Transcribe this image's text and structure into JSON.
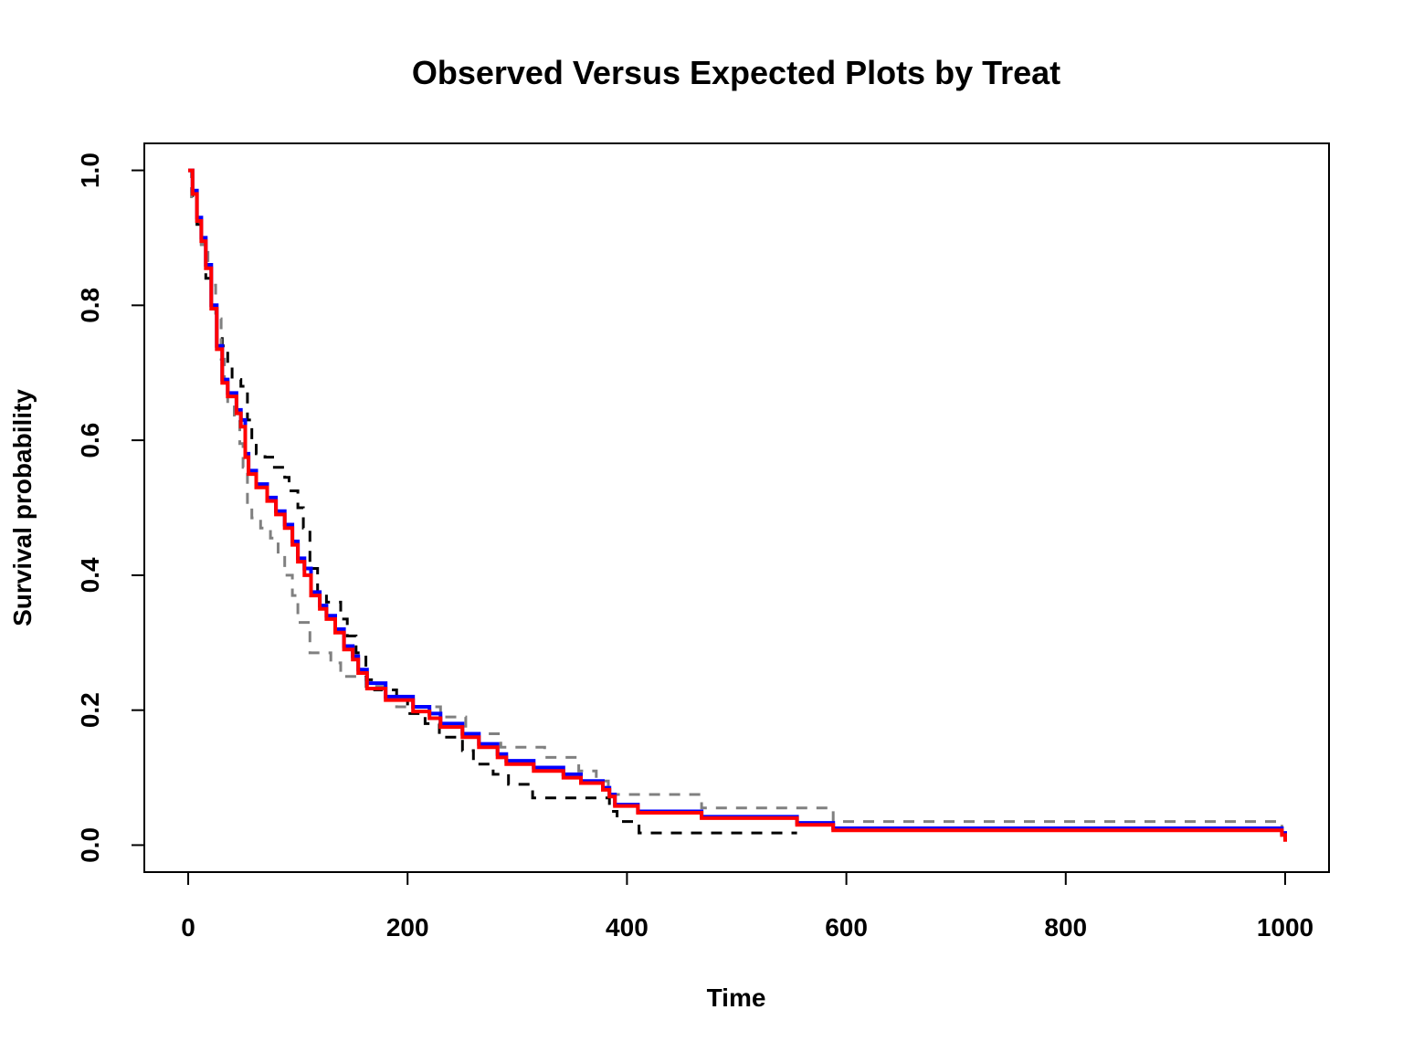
{
  "chart_data": {
    "type": "line",
    "step": true,
    "title": "Observed Versus Expected Plots by Treat",
    "xlabel": "Time",
    "ylabel": "Survival probability",
    "xlim": [
      -40,
      1040
    ],
    "ylim": [
      -0.04,
      1.04
    ],
    "x_ticks": [
      0,
      200,
      400,
      600,
      800,
      1000
    ],
    "x_tick_labels": [
      "0",
      "200",
      "400",
      "600",
      "800",
      "1000"
    ],
    "y_ticks": [
      0.0,
      0.2,
      0.4,
      0.6,
      0.8,
      1.0
    ],
    "y_tick_labels": [
      "0.0",
      "0.2",
      "0.4",
      "0.6",
      "0.8",
      "1.0"
    ],
    "grid": false,
    "legend": "none",
    "series": [
      {
        "color": "#000000",
        "dash": "dashed",
        "width": 3,
        "points": [
          [
            0,
            1.0
          ],
          [
            4,
            0.96
          ],
          [
            8,
            0.92
          ],
          [
            12,
            0.89
          ],
          [
            16,
            0.84
          ],
          [
            21,
            0.8
          ],
          [
            26,
            0.76
          ],
          [
            31,
            0.74
          ],
          [
            36,
            0.71
          ],
          [
            40,
            0.69
          ],
          [
            48,
            0.68
          ],
          [
            54,
            0.63
          ],
          [
            58,
            0.6
          ],
          [
            62,
            0.58
          ],
          [
            70,
            0.575
          ],
          [
            77,
            0.56
          ],
          [
            88,
            0.545
          ],
          [
            92,
            0.525
          ],
          [
            100,
            0.5
          ],
          [
            105,
            0.47
          ],
          [
            111,
            0.41
          ],
          [
            118,
            0.375
          ],
          [
            126,
            0.36
          ],
          [
            139,
            0.335
          ],
          [
            145,
            0.31
          ],
          [
            153,
            0.285
          ],
          [
            162,
            0.245
          ],
          [
            170,
            0.23
          ],
          [
            190,
            0.215
          ],
          [
            200,
            0.195
          ],
          [
            216,
            0.18
          ],
          [
            229,
            0.16
          ],
          [
            250,
            0.14
          ],
          [
            260,
            0.12
          ],
          [
            278,
            0.105
          ],
          [
            292,
            0.09
          ],
          [
            314,
            0.07
          ],
          [
            384,
            0.05
          ],
          [
            391,
            0.035
          ],
          [
            411,
            0.018
          ],
          [
            555,
            0.018
          ]
        ]
      },
      {
        "color": "#808080",
        "dash": "dashed",
        "width": 3,
        "points": [
          [
            0,
            1.0
          ],
          [
            3,
            0.955
          ],
          [
            8,
            0.93
          ],
          [
            12,
            0.89
          ],
          [
            18,
            0.86
          ],
          [
            21,
            0.83
          ],
          [
            25,
            0.78
          ],
          [
            30,
            0.72
          ],
          [
            33,
            0.69
          ],
          [
            36,
            0.655
          ],
          [
            42,
            0.635
          ],
          [
            47,
            0.595
          ],
          [
            50,
            0.56
          ],
          [
            54,
            0.5
          ],
          [
            58,
            0.485
          ],
          [
            66,
            0.47
          ],
          [
            75,
            0.455
          ],
          [
            82,
            0.43
          ],
          [
            88,
            0.4
          ],
          [
            95,
            0.37
          ],
          [
            100,
            0.33
          ],
          [
            111,
            0.285
          ],
          [
            130,
            0.27
          ],
          [
            139,
            0.25
          ],
          [
            162,
            0.235
          ],
          [
            178,
            0.22
          ],
          [
            190,
            0.205
          ],
          [
            230,
            0.19
          ],
          [
            253,
            0.165
          ],
          [
            285,
            0.145
          ],
          [
            325,
            0.13
          ],
          [
            356,
            0.11
          ],
          [
            372,
            0.095
          ],
          [
            383,
            0.075
          ],
          [
            468,
            0.055
          ],
          [
            588,
            0.035
          ],
          [
            992,
            0.035
          ],
          [
            997,
            0.015
          ],
          [
            1000,
            0.01
          ]
        ]
      },
      {
        "color": "#0000ff",
        "dash": "solid",
        "width": 4,
        "points": [
          [
            0,
            1.0
          ],
          [
            4,
            0.97
          ],
          [
            8,
            0.93
          ],
          [
            12,
            0.9
          ],
          [
            16,
            0.86
          ],
          [
            21,
            0.8
          ],
          [
            26,
            0.74
          ],
          [
            31,
            0.69
          ],
          [
            36,
            0.67
          ],
          [
            44,
            0.645
          ],
          [
            48,
            0.63
          ],
          [
            52,
            0.58
          ],
          [
            55,
            0.555
          ],
          [
            62,
            0.535
          ],
          [
            72,
            0.515
          ],
          [
            80,
            0.495
          ],
          [
            88,
            0.475
          ],
          [
            95,
            0.45
          ],
          [
            100,
            0.425
          ],
          [
            106,
            0.41
          ],
          [
            112,
            0.375
          ],
          [
            120,
            0.355
          ],
          [
            126,
            0.34
          ],
          [
            134,
            0.32
          ],
          [
            142,
            0.295
          ],
          [
            150,
            0.28
          ],
          [
            155,
            0.26
          ],
          [
            163,
            0.24
          ],
          [
            180,
            0.22
          ],
          [
            205,
            0.205
          ],
          [
            220,
            0.195
          ],
          [
            230,
            0.18
          ],
          [
            250,
            0.165
          ],
          [
            265,
            0.15
          ],
          [
            282,
            0.135
          ],
          [
            290,
            0.125
          ],
          [
            315,
            0.115
          ],
          [
            342,
            0.105
          ],
          [
            358,
            0.095
          ],
          [
            378,
            0.085
          ],
          [
            384,
            0.075
          ],
          [
            389,
            0.06
          ],
          [
            410,
            0.05
          ],
          [
            468,
            0.042
          ],
          [
            555,
            0.033
          ],
          [
            588,
            0.025
          ],
          [
            992,
            0.025
          ],
          [
            997,
            0.018
          ],
          [
            1000,
            0.01
          ]
        ]
      },
      {
        "color": "#ff0000",
        "dash": "solid",
        "width": 4,
        "points": [
          [
            0,
            1.0
          ],
          [
            4,
            0.965
          ],
          [
            8,
            0.925
          ],
          [
            12,
            0.895
          ],
          [
            16,
            0.855
          ],
          [
            21,
            0.795
          ],
          [
            26,
            0.735
          ],
          [
            31,
            0.685
          ],
          [
            36,
            0.665
          ],
          [
            44,
            0.64
          ],
          [
            48,
            0.62
          ],
          [
            52,
            0.575
          ],
          [
            55,
            0.55
          ],
          [
            62,
            0.53
          ],
          [
            72,
            0.51
          ],
          [
            80,
            0.49
          ],
          [
            88,
            0.47
          ],
          [
            95,
            0.445
          ],
          [
            100,
            0.42
          ],
          [
            106,
            0.4
          ],
          [
            112,
            0.37
          ],
          [
            120,
            0.35
          ],
          [
            126,
            0.335
          ],
          [
            134,
            0.315
          ],
          [
            142,
            0.29
          ],
          [
            150,
            0.275
          ],
          [
            155,
            0.255
          ],
          [
            163,
            0.232
          ],
          [
            180,
            0.215
          ],
          [
            205,
            0.198
          ],
          [
            220,
            0.188
          ],
          [
            230,
            0.175
          ],
          [
            250,
            0.16
          ],
          [
            265,
            0.145
          ],
          [
            282,
            0.13
          ],
          [
            290,
            0.12
          ],
          [
            315,
            0.11
          ],
          [
            342,
            0.1
          ],
          [
            358,
            0.092
          ],
          [
            378,
            0.082
          ],
          [
            384,
            0.072
          ],
          [
            389,
            0.058
          ],
          [
            410,
            0.048
          ],
          [
            468,
            0.04
          ],
          [
            555,
            0.03
          ],
          [
            588,
            0.022
          ],
          [
            992,
            0.022
          ],
          [
            997,
            0.015
          ],
          [
            1000,
            0.005
          ]
        ]
      }
    ]
  }
}
